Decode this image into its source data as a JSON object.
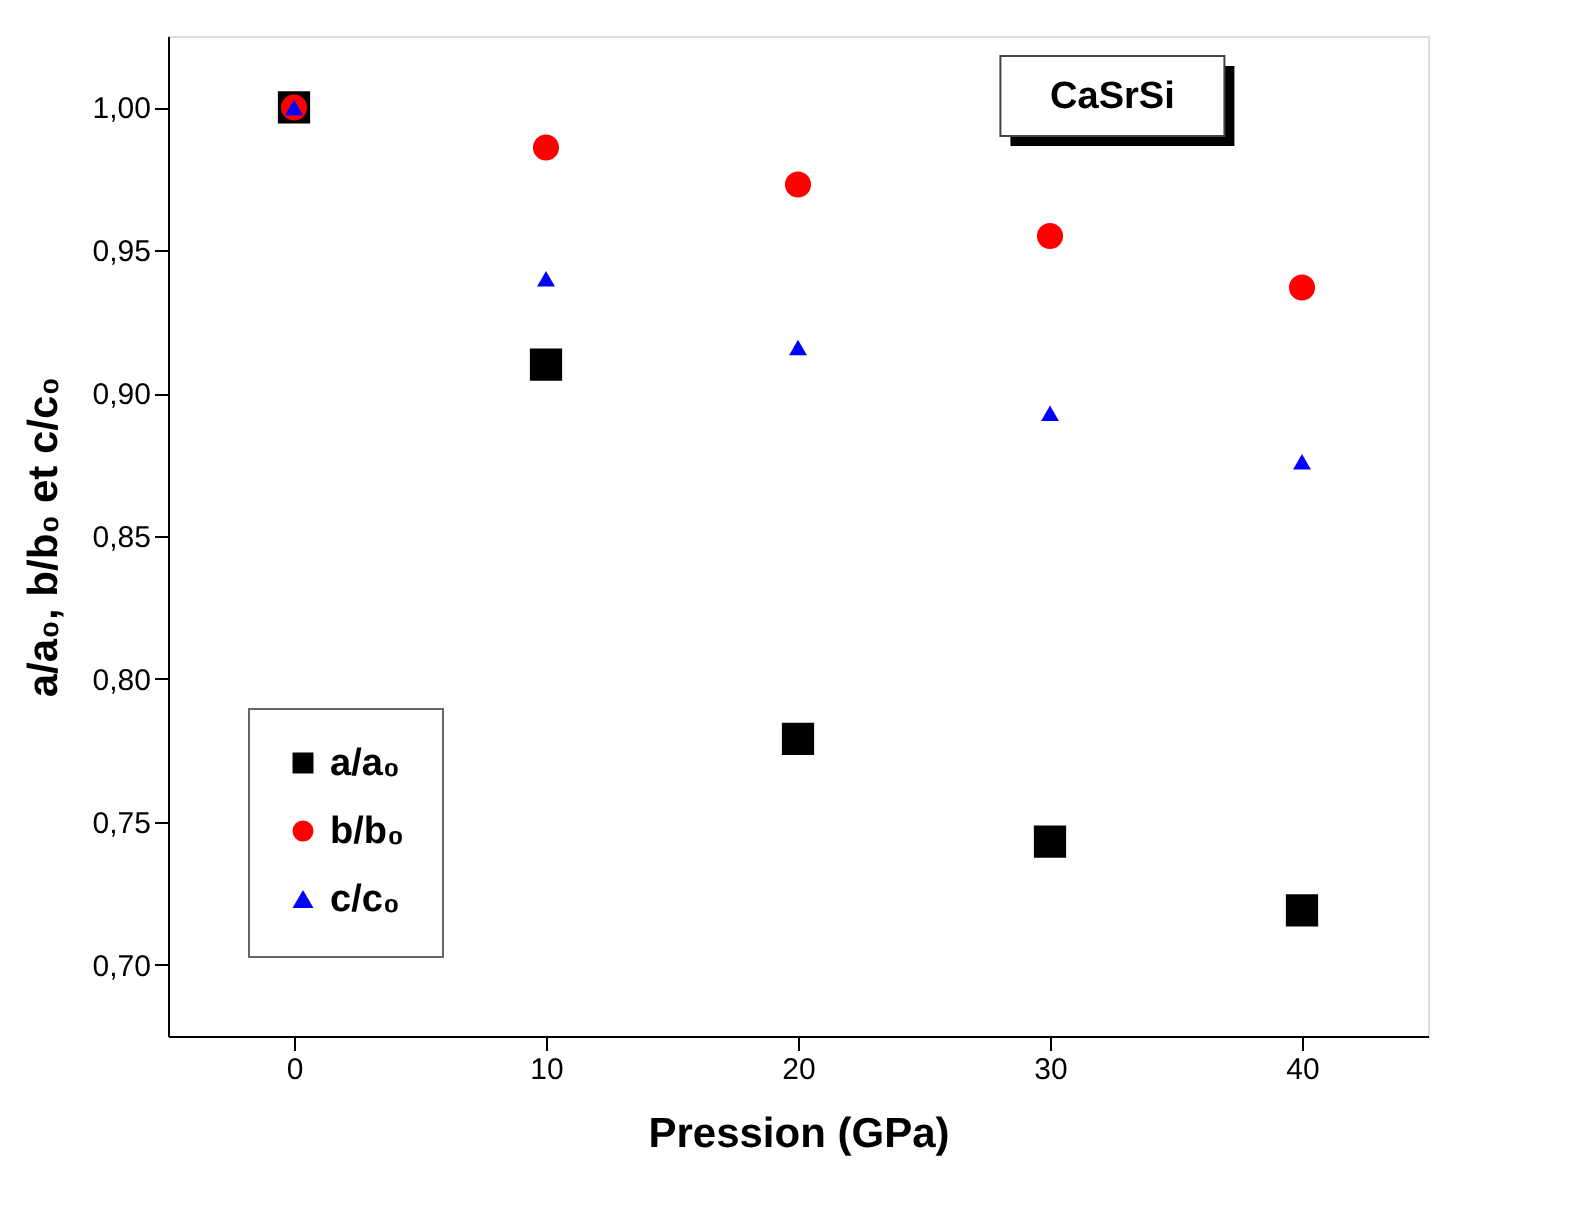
{
  "chart_data": {
    "type": "scatter",
    "xlabel": "Pression (GPa)",
    "ylabel": "a/a₀, b/b₀ et c/c₀",
    "x": [
      0,
      10,
      20,
      30,
      40
    ],
    "series": [
      {
        "name": "a/a₀",
        "color": "#000000",
        "marker": "square",
        "values": [
          1.0,
          0.91,
          0.779,
          0.743,
          0.719
        ]
      },
      {
        "name": "b/b₀",
        "color": "#ff0000",
        "marker": "circle",
        "values": [
          1.0,
          0.986,
          0.973,
          0.955,
          0.937
        ]
      },
      {
        "name": "c/c₀",
        "color": "#0000ff",
        "marker": "triangle",
        "values": [
          1.0,
          0.94,
          0.916,
          0.893,
          0.876
        ]
      }
    ],
    "xlim": [
      -5,
      45
    ],
    "xticks": [
      0,
      10,
      20,
      30,
      40
    ],
    "ylim": [
      0.675,
      1.025
    ],
    "yticks": [
      {
        "value": 0.7,
        "label": "0,70"
      },
      {
        "value": 0.75,
        "label": "0,75"
      },
      {
        "value": 0.8,
        "label": "0,80"
      },
      {
        "value": 0.85,
        "label": "0,85"
      },
      {
        "value": 0.9,
        "label": "0,90"
      },
      {
        "value": 0.95,
        "label": "0,95"
      },
      {
        "value": 1.0,
        "label": "1,00"
      }
    ],
    "annotations": [
      "CaSrSi"
    ],
    "grid": false,
    "legend": "bottom left"
  }
}
